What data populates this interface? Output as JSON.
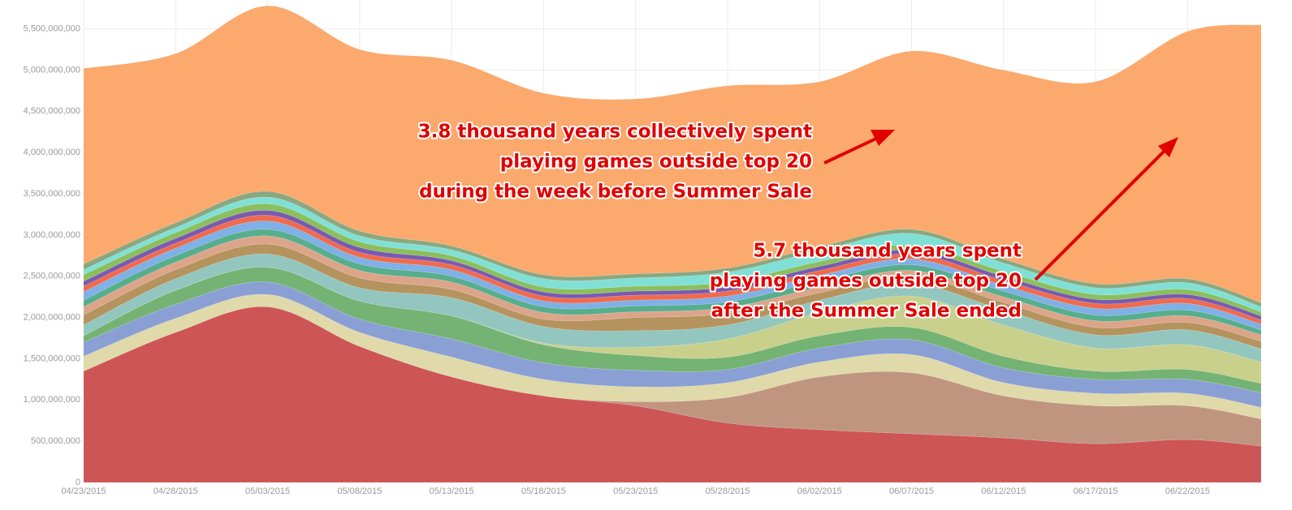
{
  "chart_data": {
    "type": "stacked_area",
    "x": [
      "04/23/2015",
      "04/28/2015",
      "05/03/2015",
      "05/08/2015",
      "05/13/2015",
      "05/18/2015",
      "05/23/2015",
      "05/28/2015",
      "06/02/2015",
      "06/07/2015",
      "06/12/2015",
      "06/17/2015",
      "06/22/2015",
      "06/26/2015"
    ],
    "xlim": [
      "04/23/2015",
      "06/26/2015"
    ],
    "xticks": [
      "04/23/2015",
      "04/28/2015",
      "05/03/2015",
      "05/08/2015",
      "05/13/2015",
      "05/18/2015",
      "05/23/2015",
      "05/28/2015",
      "06/02/2015",
      "06/07/2015",
      "06/12/2015",
      "06/17/2015",
      "06/22/2015"
    ],
    "ylim": [
      0,
      5850000000
    ],
    "yticks": [
      0,
      {
        "value": 500000000,
        "label": "500,000,000"
      },
      {
        "value": 1000000000,
        "label": "1,000,000,000"
      },
      {
        "value": 1500000000,
        "label": "1,500,000,000"
      },
      {
        "value": 2000000000,
        "label": "2,000,000,000"
      },
      {
        "value": 2500000000,
        "label": "2,500,000,000"
      },
      {
        "value": 3000000000,
        "label": "3,000,000,000"
      },
      {
        "value": 3500000000,
        "label": "3,500,000,000"
      },
      {
        "value": 4000000000,
        "label": "4,000,000,000"
      },
      {
        "value": 4500000000,
        "label": "4,500,000,000"
      },
      {
        "value": 5000000000,
        "label": "5,000,000,000"
      },
      {
        "value": 5500000000,
        "label": "5,500,000,000"
      }
    ],
    "grid": true,
    "series": [
      {
        "color": "#cd5555",
        "values": [
          1350000000.0,
          1820000000.0,
          2130000000.0,
          1650000000.0,
          1280000000.0,
          1050000000.0,
          930000000.0,
          720000000.0,
          640000000.0,
          590000000.0,
          540000000.0,
          470000000.0,
          520000000.0,
          440000000.0
        ]
      },
      {
        "color": "#c09580",
        "values": [
          0,
          0,
          0,
          0,
          0,
          0,
          50000000.0,
          310000000.0,
          640000000.0,
          740000000.0,
          510000000.0,
          460000000.0,
          410000000.0,
          330000000.0
        ]
      },
      {
        "color": "#e0d9aa",
        "values": [
          180000000.0,
          170000000.0,
          150000000.0,
          170000000.0,
          240000000.0,
          200000000.0,
          180000000.0,
          180000000.0,
          180000000.0,
          220000000.0,
          160000000.0,
          150000000.0,
          150000000.0,
          140000000.0
        ]
      },
      {
        "color": "#8a9fd4",
        "values": [
          170000000.0,
          170000000.0,
          150000000.0,
          160000000.0,
          220000000.0,
          200000000.0,
          200000000.0,
          160000000.0,
          170000000.0,
          180000000.0,
          180000000.0,
          170000000.0,
          170000000.0,
          180000000.0
        ]
      },
      {
        "color": "#74b374",
        "values": [
          80000000.0,
          170000000.0,
          180000000.0,
          220000000.0,
          280000000.0,
          220000000.0,
          180000000.0,
          150000000.0,
          150000000.0,
          150000000.0,
          140000000.0,
          100000000.0,
          120000000.0,
          110000000.0
        ]
      },
      {
        "color": "#c8d08c",
        "values": [
          0,
          0,
          0,
          0,
          0,
          20000000.0,
          100000000.0,
          220000000.0,
          280000000.0,
          380000000.0,
          380000000.0,
          280000000.0,
          300000000.0,
          260000000.0
        ]
      },
      {
        "color": "#93c6bf",
        "values": [
          130000000.0,
          140000000.0,
          160000000.0,
          160000000.0,
          220000000.0,
          200000000.0,
          200000000.0,
          170000000.0,
          150000000.0,
          150000000.0,
          180000000.0,
          160000000.0,
          180000000.0,
          160000000.0
        ]
      },
      {
        "color": "#b5935e",
        "values": [
          120000000.0,
          110000000.0,
          120000000.0,
          120000000.0,
          100000000.0,
          90000000.0,
          160000000.0,
          140000000.0,
          90000000.0,
          90000000.0,
          90000000.0,
          90000000.0,
          90000000.0,
          90000000.0
        ]
      },
      {
        "color": "#dca58a",
        "values": [
          100000000.0,
          90000000.0,
          100000000.0,
          90000000.0,
          90000000.0,
          80000000.0,
          70000000.0,
          70000000.0,
          70000000.0,
          70000000.0,
          70000000.0,
          80000000.0,
          80000000.0,
          80000000.0
        ]
      },
      {
        "color": "#57ae8c",
        "values": [
          80000000.0,
          80000000.0,
          80000000.0,
          80000000.0,
          70000000.0,
          70000000.0,
          70000000.0,
          70000000.0,
          70000000.0,
          70000000.0,
          70000000.0,
          70000000.0,
          70000000.0,
          60000000.0
        ]
      },
      {
        "color": "#7fb0e6",
        "values": [
          100000000.0,
          90000000.0,
          100000000.0,
          80000000.0,
          80000000.0,
          70000000.0,
          70000000.0,
          70000000.0,
          70000000.0,
          70000000.0,
          70000000.0,
          80000000.0,
          80000000.0,
          70000000.0
        ]
      },
      {
        "color": "#f06a4e",
        "values": [
          70000000.0,
          60000000.0,
          70000000.0,
          60000000.0,
          60000000.0,
          60000000.0,
          60000000.0,
          60000000.0,
          60000000.0,
          60000000.0,
          60000000.0,
          60000000.0,
          60000000.0,
          50000000.0
        ]
      },
      {
        "color": "#7a5ab0",
        "values": [
          60000000.0,
          60000000.0,
          60000000.0,
          60000000.0,
          50000000.0,
          50000000.0,
          50000000.0,
          50000000.0,
          50000000.0,
          50000000.0,
          50000000.0,
          50000000.0,
          50000000.0,
          50000000.0
        ]
      },
      {
        "color": "#8bbf5e",
        "values": [
          80000000.0,
          70000000.0,
          80000000.0,
          70000000.0,
          60000000.0,
          60000000.0,
          60000000.0,
          60000000.0,
          60000000.0,
          60000000.0,
          60000000.0,
          60000000.0,
          60000000.0,
          50000000.0
        ]
      },
      {
        "color": "#80e0d6",
        "values": [
          60000000.0,
          60000000.0,
          80000000.0,
          70000000.0,
          70000000.0,
          100000000.0,
          100000000.0,
          120000000.0,
          130000000.0,
          140000000.0,
          100000000.0,
          80000000.0,
          80000000.0,
          60000000.0
        ]
      },
      {
        "color": "#8aa880",
        "values": [
          70000000.0,
          60000000.0,
          70000000.0,
          60000000.0,
          50000000.0,
          50000000.0,
          50000000.0,
          50000000.0,
          50000000.0,
          50000000.0,
          50000000.0,
          50000000.0,
          50000000.0,
          50000000.0
        ]
      },
      {
        "color": "#fba96d",
        "values": [
          2370000000.0,
          2050000000.0,
          2250000000.0,
          2200000000.0,
          2250000000.0,
          2200000000.0,
          2120000000.0,
          2210000000.0,
          2000000000.0,
          2160000000.0,
          2290000000.0,
          2450000000.0,
          3000000000.0,
          3370000000.0
        ]
      }
    ],
    "annotations": [
      {
        "lines": [
          "3.8 thousand years collectively spent",
          "playing games outside top 20",
          "during the week before Summer Sale"
        ]
      },
      {
        "lines": [
          "5.7 thousand years spent",
          "playing games outside top 20",
          "after the Summer Sale ended"
        ]
      }
    ]
  }
}
